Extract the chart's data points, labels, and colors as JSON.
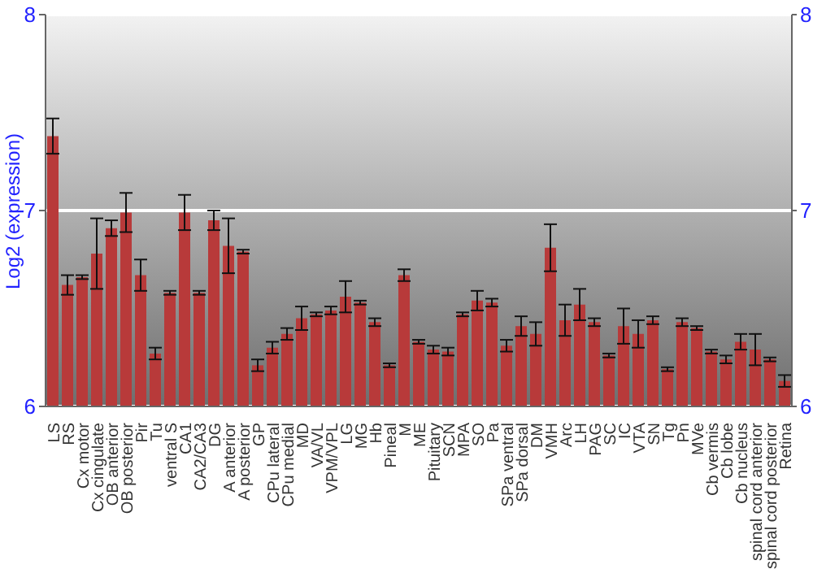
{
  "chart_data": {
    "type": "bar",
    "ylabel": "Log2 (expression)",
    "categories": [
      "LS",
      "RS",
      "Cx motor",
      "Cx cingulate",
      "OB anterior",
      "OB posterior",
      "Pir",
      "Tu",
      "ventral S",
      "CA1",
      "CA2/CA3",
      "DG",
      "A anterior",
      "A posterior",
      "GP",
      "CPu lateral",
      "CPu medial",
      "MD",
      "VA/VL",
      "VPM/VPL",
      "LG",
      "MG",
      "Hb",
      "Pineal",
      "M",
      "ME",
      "Pituitary",
      "SCN",
      "MPA",
      "SO",
      "Pa",
      "SPa ventral",
      "SPa dorsal",
      "DM",
      "VMH",
      "Arc",
      "LH",
      "PAG",
      "SC",
      "IC",
      "VTA",
      "SN",
      "Tg",
      "Pn",
      "MVe",
      "Cb vermis",
      "Cb lobe",
      "Cb nucleus",
      "spinal cord anterior",
      "spinal cord posterior",
      "Retina"
    ],
    "values": [
      7.38,
      6.62,
      6.66,
      6.78,
      6.91,
      6.99,
      6.67,
      6.27,
      6.58,
      6.99,
      6.58,
      6.95,
      6.82,
      6.79,
      6.21,
      6.3,
      6.37,
      6.45,
      6.47,
      6.49,
      6.56,
      6.53,
      6.43,
      6.21,
      6.67,
      6.33,
      6.29,
      6.28,
      6.47,
      6.54,
      6.53,
      6.31,
      6.41,
      6.37,
      6.81,
      6.44,
      6.52,
      6.43,
      6.26,
      6.41,
      6.37,
      6.44,
      6.19,
      6.43,
      6.4,
      6.28,
      6.24,
      6.33,
      6.29,
      6.24,
      6.13
    ],
    "errors": [
      0.09,
      0.05,
      0.01,
      0.18,
      0.04,
      0.1,
      0.08,
      0.03,
      0.01,
      0.09,
      0.01,
      0.05,
      0.14,
      0.01,
      0.03,
      0.03,
      0.03,
      0.06,
      0.01,
      0.02,
      0.08,
      0.01,
      0.02,
      0.01,
      0.03,
      0.01,
      0.02,
      0.02,
      0.01,
      0.05,
      0.02,
      0.03,
      0.05,
      0.06,
      0.12,
      0.08,
      0.08,
      0.02,
      0.01,
      0.09,
      0.07,
      0.02,
      0.01,
      0.02,
      0.01,
      0.01,
      0.02,
      0.04,
      0.08,
      0.01,
      0.03
    ],
    "color": "#b83a3a",
    "ylim": [
      6,
      8
    ],
    "yticks": [
      6,
      7,
      8
    ],
    "y2lim": [
      6,
      8
    ],
    "y2ticks": [
      6,
      7,
      8
    ],
    "grid": "y"
  }
}
